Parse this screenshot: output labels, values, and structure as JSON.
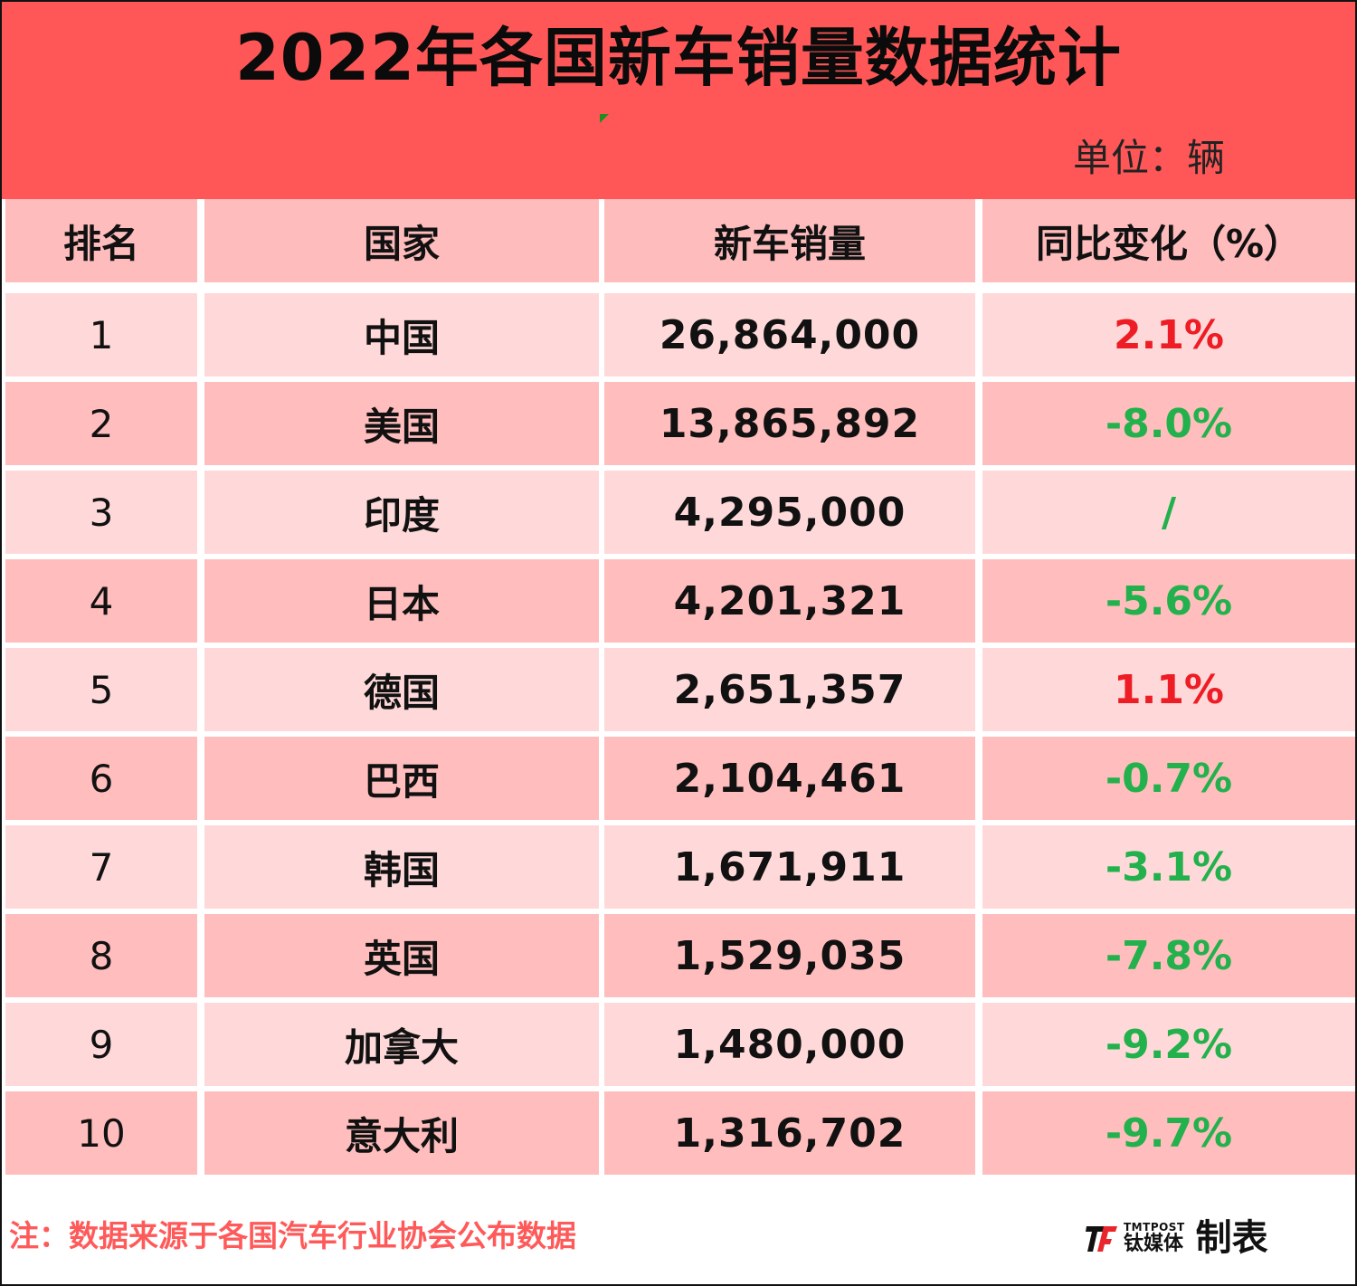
{
  "title": "2022年各国新车销量数据统计",
  "unit": "单位：辆",
  "headers": {
    "rank": "排名",
    "country": "国家",
    "sales": "新车销量",
    "change": "同比变化（%）"
  },
  "rows": [
    {
      "rank": "1",
      "country": "中国",
      "sales": "26,864,000",
      "change": "2.1%",
      "trend": "up"
    },
    {
      "rank": "2",
      "country": "美国",
      "sales": "13,865,892",
      "change": "-8.0%",
      "trend": "down"
    },
    {
      "rank": "3",
      "country": "印度",
      "sales": "4,295,000",
      "change": "/",
      "trend": "none"
    },
    {
      "rank": "4",
      "country": "日本",
      "sales": "4,201,321",
      "change": "-5.6%",
      "trend": "down"
    },
    {
      "rank": "5",
      "country": "德国",
      "sales": "2,651,357",
      "change": "1.1%",
      "trend": "up"
    },
    {
      "rank": "6",
      "country": "巴西",
      "sales": "2,104,461",
      "change": "-0.7%",
      "trend": "down"
    },
    {
      "rank": "7",
      "country": "韩国",
      "sales": "1,671,911",
      "change": "-3.1%",
      "trend": "down"
    },
    {
      "rank": "8",
      "country": "英国",
      "sales": "1,529,035",
      "change": "-7.8%",
      "trend": "down"
    },
    {
      "rank": "9",
      "country": "加拿大",
      "sales": "1,480,000",
      "change": "-9.2%",
      "trend": "down"
    },
    {
      "rank": "10",
      "country": "意大利",
      "sales": "1,316,702",
      "change": "-9.7%",
      "trend": "down"
    }
  ],
  "footer": {
    "note": "注：数据来源于各国汽车行业协会公布数据",
    "brand_en": "TMTPOST",
    "brand_cn": "钛媒体",
    "made_by": "制表"
  },
  "colors": {
    "header_bg": "#ff5757",
    "row_light": "#ffd9d9",
    "row_dark": "#ffbdbd",
    "positive": "#ee1c24",
    "negative": "#22b14c",
    "note": "#ff5a5a"
  },
  "chart_data": {
    "type": "table",
    "title": "2022年各国新车销量数据统计",
    "unit": "单位：辆",
    "columns": [
      "排名",
      "国家",
      "新车销量",
      "同比变化（%）"
    ],
    "rows": [
      [
        "1",
        "中国",
        "26,864,000",
        "2.1%"
      ],
      [
        "2",
        "美国",
        "13,865,892",
        "-8.0%"
      ],
      [
        "3",
        "印度",
        "4,295,000",
        "/"
      ],
      [
        "4",
        "日本",
        "4,201,321",
        "-5.6%"
      ],
      [
        "5",
        "德国",
        "2,651,357",
        "1.1%"
      ],
      [
        "6",
        "巴西",
        "2,104,461",
        "-0.7%"
      ],
      [
        "7",
        "韩国",
        "1,671,911",
        "-3.1%"
      ],
      [
        "8",
        "英国",
        "1,529,035",
        "-7.8%"
      ],
      [
        "9",
        "加拿大",
        "1,480,000",
        "-9.2%"
      ],
      [
        "10",
        "意大利",
        "1,316,702",
        "-9.7%"
      ]
    ]
  }
}
